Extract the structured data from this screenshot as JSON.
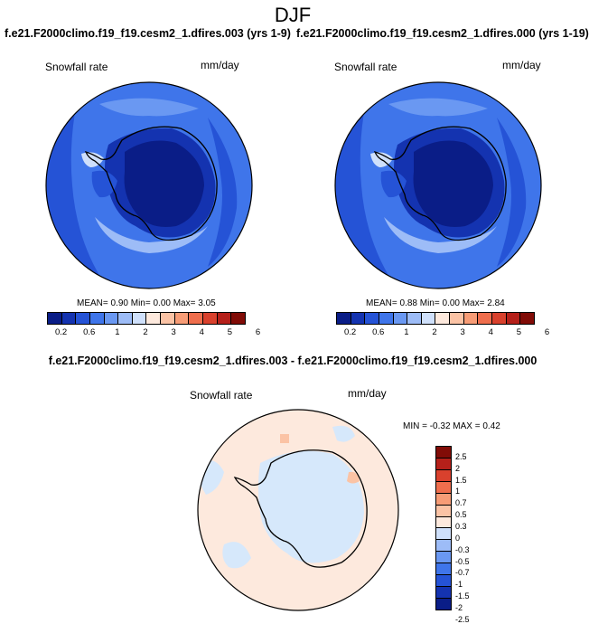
{
  "figure": {
    "title": "DJF",
    "diff_title": "f.e21.F2000climo.f19_f19.cesm2_1.dfires.003 - f.e21.F2000climo.f19_f19.cesm2_1.dfires.000"
  },
  "panels": [
    {
      "header": "f.e21.F2000climo.f19_f19.cesm2_1.dfires.003 (yrs 1-9)",
      "variable": "Snowfall rate",
      "units": "mm/day",
      "stats": "MEAN=  0.90  Min=  0.00  Max=  3.05"
    },
    {
      "header": "f.e21.F2000climo.f19_f19.cesm2_1.dfires.000 (yrs 1-19)",
      "variable": "Snowfall rate",
      "units": "mm/day",
      "stats": "MEAN=  0.88  Min=  0.00  Max=  2.84"
    }
  ],
  "diff_panel": {
    "variable": "Snowfall rate",
    "units": "mm/day",
    "stats": "MIN = -0.32 MAX =  0.42"
  },
  "abs_colorbar": {
    "colors": [
      "#0a1d87",
      "#1433b0",
      "#2553d6",
      "#3f75ea",
      "#6a98f2",
      "#9dbcf7",
      "#cfe0fb",
      "#fde9dd",
      "#fbc3a5",
      "#f79c76",
      "#ef6e4d",
      "#d9412d",
      "#b5201a",
      "#810c07"
    ],
    "labels": [
      "0.2",
      "0.6",
      "1",
      "2",
      "3",
      "4",
      "5",
      "6"
    ]
  },
  "diff_colorbar": {
    "colors": [
      "#810c07",
      "#b5201a",
      "#d9412d",
      "#ef6e4d",
      "#f79c76",
      "#fbc3a5",
      "#fde9dd",
      "#cfe0fb",
      "#9dbcf7",
      "#6a98f2",
      "#3f75ea",
      "#2553d6",
      "#1433b0",
      "#0a1d87"
    ],
    "labels": [
      "2.5",
      "2",
      "1.5",
      "1",
      "0.7",
      "0.5",
      "0.3",
      "0",
      "-0.3",
      "-0.5",
      "-0.7",
      "-1",
      "-1.5",
      "-2",
      "-2.5"
    ]
  },
  "map_colors": {
    "ocean_low": "#2553d6",
    "ocean_mid": "#3f75ea",
    "ocean_light": "#6a98f2",
    "ocean_pale": "#9dbcf7",
    "ice_dark": "#0a1d87",
    "ice_mid": "#1433b0",
    "peninsula": "#cfe0fb",
    "diff_positive": "#fde9dd",
    "diff_negative": "#d6e8fb",
    "diff_patch": "#fbc3a5"
  }
}
